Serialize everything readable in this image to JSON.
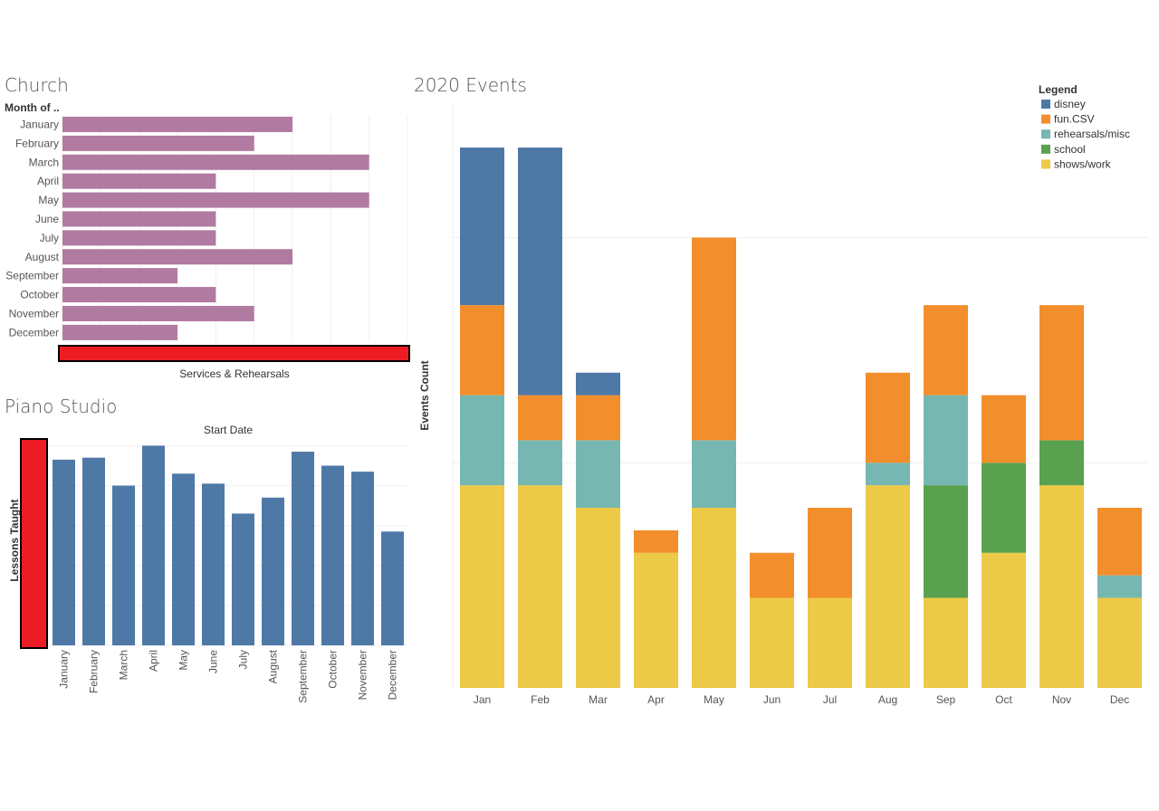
{
  "chart_data": [
    {
      "type": "bar",
      "orientation": "horizontal",
      "title": "Church",
      "row_header": "Month of ..",
      "xlabel": "Services & Rehearsals",
      "categories": [
        "January",
        "February",
        "March",
        "April",
        "May",
        "June",
        "July",
        "August",
        "September",
        "October",
        "November",
        "December"
      ],
      "values": [
        6,
        5,
        8,
        4,
        8,
        4,
        4,
        6,
        3,
        4,
        5,
        3
      ],
      "xlim": [
        0,
        9
      ],
      "color": "#B07AA1",
      "axis_highlight_color": "#ED1C24"
    },
    {
      "type": "bar",
      "title": "Piano Studio",
      "top_label": "Start Date",
      "ylabel": "Lessons Taught",
      "categories": [
        "January",
        "February",
        "March",
        "April",
        "May",
        "June",
        "July",
        "August",
        "September",
        "October",
        "November",
        "December"
      ],
      "values": [
        46.5,
        47,
        40,
        50,
        43,
        40.5,
        33,
        37,
        48.5,
        45,
        43.5,
        28.5
      ],
      "ylim": [
        0,
        51
      ],
      "color": "#4E79A7",
      "axis_highlight_color": "#ED1C24"
    },
    {
      "type": "bar",
      "stacked": true,
      "title": "2020 Events",
      "ylabel": "Events Count",
      "categories": [
        "Jan",
        "Feb",
        "Mar",
        "Apr",
        "May",
        "Jun",
        "Jul",
        "Aug",
        "Sep",
        "Oct",
        "Nov",
        "Dec"
      ],
      "ylim": [
        0,
        24
      ],
      "legend_title": "Legend",
      "series": [
        {
          "name": "shows/work",
          "color": "#EDC948",
          "values": [
            9,
            9,
            8,
            6,
            8,
            4,
            4,
            9,
            4,
            6,
            9,
            4
          ]
        },
        {
          "name": "school",
          "color": "#59A14F",
          "values": [
            0,
            0,
            0,
            0,
            0,
            0,
            0,
            0,
            5,
            4,
            2,
            0
          ]
        },
        {
          "name": "rehearsals/misc",
          "color": "#76B7B2",
          "values": [
            4,
            2,
            3,
            0,
            3,
            0,
            0,
            1,
            4,
            0,
            0,
            1
          ]
        },
        {
          "name": "fun.CSV",
          "color": "#F28E2B",
          "values": [
            4,
            2,
            2,
            1,
            9,
            2,
            4,
            4,
            4,
            3,
            6,
            3
          ]
        },
        {
          "name": "disney",
          "color": "#4E79A7",
          "values": [
            7,
            11,
            1,
            0,
            0,
            0,
            0,
            0,
            0,
            0,
            0,
            0
          ]
        }
      ],
      "legend_order": [
        "disney",
        "fun.CSV",
        "rehearsals/misc",
        "school",
        "shows/work"
      ]
    }
  ]
}
